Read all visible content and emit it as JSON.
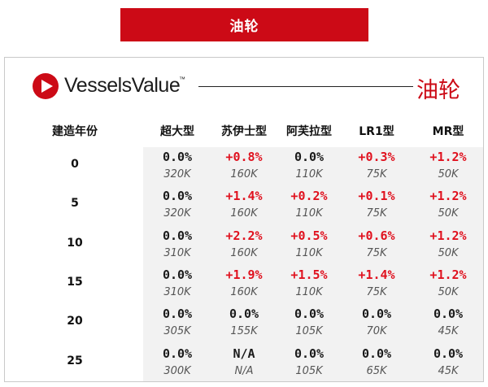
{
  "banner": {
    "title": "油轮"
  },
  "brand": {
    "name": "VesselsValue",
    "tm": "™",
    "chart_title": "油轮"
  },
  "columns": {
    "year_label": "建造年份",
    "types": [
      "超大型",
      "苏伊士型",
      "阿芙拉型",
      "LR1型",
      "MR型"
    ]
  },
  "rows": [
    {
      "year": "0",
      "cells": [
        {
          "change": "0.0%",
          "value": "320K"
        },
        {
          "change": "+0.8%",
          "value": "160K"
        },
        {
          "change": "0.0%",
          "value": "110K"
        },
        {
          "change": "+0.3%",
          "value": "75K"
        },
        {
          "change": "+1.2%",
          "value": "50K"
        }
      ]
    },
    {
      "year": "5",
      "cells": [
        {
          "change": "0.0%",
          "value": "320K"
        },
        {
          "change": "+1.4%",
          "value": "160K"
        },
        {
          "change": "+0.2%",
          "value": "110K"
        },
        {
          "change": "+0.1%",
          "value": "75K"
        },
        {
          "change": "+1.2%",
          "value": "50K"
        }
      ]
    },
    {
      "year": "10",
      "cells": [
        {
          "change": "0.0%",
          "value": "310K"
        },
        {
          "change": "+2.2%",
          "value": "160K"
        },
        {
          "change": "+0.5%",
          "value": "110K"
        },
        {
          "change": "+0.6%",
          "value": "75K"
        },
        {
          "change": "+1.2%",
          "value": "50K"
        }
      ]
    },
    {
      "year": "15",
      "cells": [
        {
          "change": "0.0%",
          "value": "310K"
        },
        {
          "change": "+1.9%",
          "value": "160K"
        },
        {
          "change": "+1.5%",
          "value": "110K"
        },
        {
          "change": "+1.4%",
          "value": "75K"
        },
        {
          "change": "+1.2%",
          "value": "50K"
        }
      ]
    },
    {
      "year": "20",
      "cells": [
        {
          "change": "0.0%",
          "value": "305K"
        },
        {
          "change": "0.0%",
          "value": "155K"
        },
        {
          "change": "0.0%",
          "value": "105K"
        },
        {
          "change": "0.0%",
          "value": "70K"
        },
        {
          "change": "0.0%",
          "value": "45K"
        }
      ]
    },
    {
      "year": "25",
      "cells": [
        {
          "change": "0.0%",
          "value": "300K"
        },
        {
          "change": "N/A",
          "value": "N/A"
        },
        {
          "change": "0.0%",
          "value": "105K"
        },
        {
          "change": "0.0%",
          "value": "65K"
        },
        {
          "change": "0.0%",
          "value": "45K"
        }
      ]
    }
  ],
  "colors": {
    "brand_red": "#cc0a16",
    "positive": "#e0121f",
    "neutral": "#1a1a1a"
  }
}
